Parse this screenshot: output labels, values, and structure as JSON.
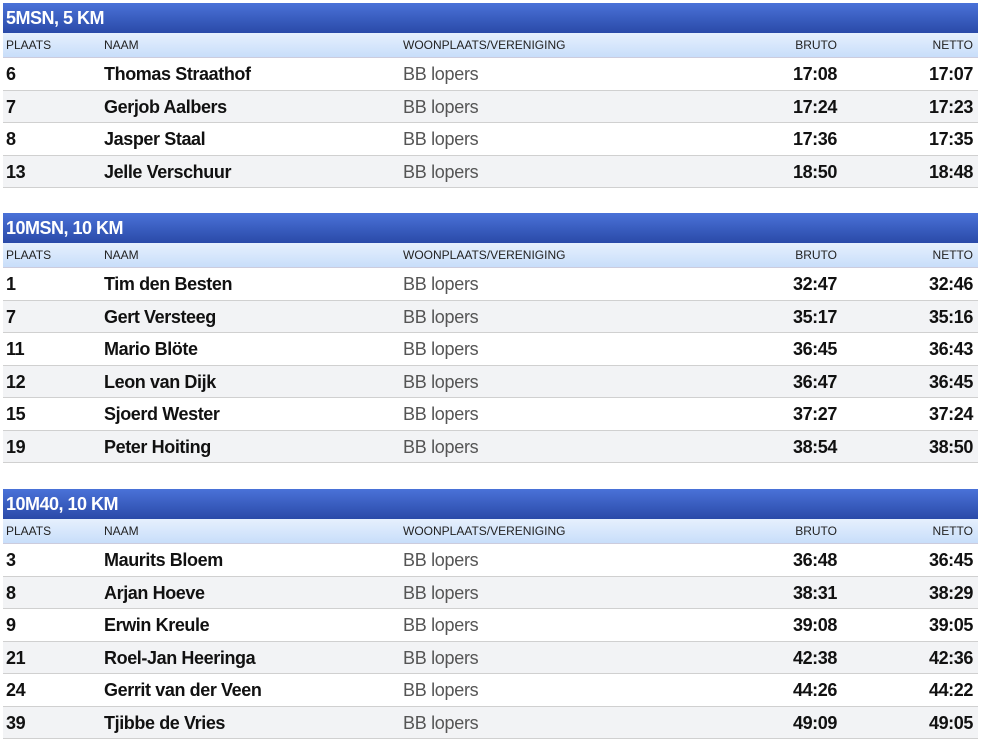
{
  "columns": {
    "plaats": "PLAATS",
    "naam": "NAAM",
    "woonplaats": "WOONPLAATS/VERENIGING",
    "bruto": "BRUTO",
    "netto": "NETTO"
  },
  "colors": {
    "title_bar": "#3a5ec0",
    "column_header": "#d6e6fb",
    "alt_row": "#f2f3f5"
  },
  "sections": [
    {
      "title": "5MSN, 5 KM",
      "rows": [
        {
          "plaats": "6",
          "naam": "Thomas Straathof",
          "woonplaats": "BB lopers",
          "bruto": "17:08",
          "netto": "17:07"
        },
        {
          "plaats": "7",
          "naam": "Gerjob Aalbers",
          "woonplaats": "BB lopers",
          "bruto": "17:24",
          "netto": "17:23"
        },
        {
          "plaats": "8",
          "naam": "Jasper Staal",
          "woonplaats": "BB lopers",
          "bruto": "17:36",
          "netto": "17:35"
        },
        {
          "plaats": "13",
          "naam": "Jelle Verschuur",
          "woonplaats": "BB lopers",
          "bruto": "18:50",
          "netto": "18:48"
        }
      ]
    },
    {
      "title": "10MSN, 10 KM",
      "rows": [
        {
          "plaats": "1",
          "naam": "Tim den Besten",
          "woonplaats": "BB lopers",
          "bruto": "32:47",
          "netto": "32:46"
        },
        {
          "plaats": "7",
          "naam": "Gert Versteeg",
          "woonplaats": "BB lopers",
          "bruto": "35:17",
          "netto": "35:16"
        },
        {
          "plaats": "11",
          "naam": "Mario Blöte",
          "woonplaats": "BB lopers",
          "bruto": "36:45",
          "netto": "36:43"
        },
        {
          "plaats": "12",
          "naam": "Leon van Dijk",
          "woonplaats": "BB lopers",
          "bruto": "36:47",
          "netto": "36:45"
        },
        {
          "plaats": "15",
          "naam": "Sjoerd Wester",
          "woonplaats": "BB lopers",
          "bruto": "37:27",
          "netto": "37:24"
        },
        {
          "plaats": "19",
          "naam": "Peter Hoiting",
          "woonplaats": "BB lopers",
          "bruto": "38:54",
          "netto": "38:50"
        }
      ]
    },
    {
      "title": "10M40, 10 KM",
      "rows": [
        {
          "plaats": "3",
          "naam": "Maurits Bloem",
          "woonplaats": "BB lopers",
          "bruto": "36:48",
          "netto": "36:45"
        },
        {
          "plaats": "8",
          "naam": "Arjan Hoeve",
          "woonplaats": "BB lopers",
          "bruto": "38:31",
          "netto": "38:29"
        },
        {
          "plaats": "9",
          "naam": "Erwin Kreule",
          "woonplaats": "BB lopers",
          "bruto": "39:08",
          "netto": "39:05"
        },
        {
          "plaats": "21",
          "naam": "Roel-Jan Heeringa",
          "woonplaats": "BB lopers",
          "bruto": "42:38",
          "netto": "42:36"
        },
        {
          "plaats": "24",
          "naam": "Gerrit van der Veen",
          "woonplaats": "BB lopers",
          "bruto": "44:26",
          "netto": "44:22"
        },
        {
          "plaats": "39",
          "naam": "Tjibbe de Vries",
          "woonplaats": "BB lopers",
          "bruto": "49:09",
          "netto": "49:05"
        }
      ]
    }
  ]
}
